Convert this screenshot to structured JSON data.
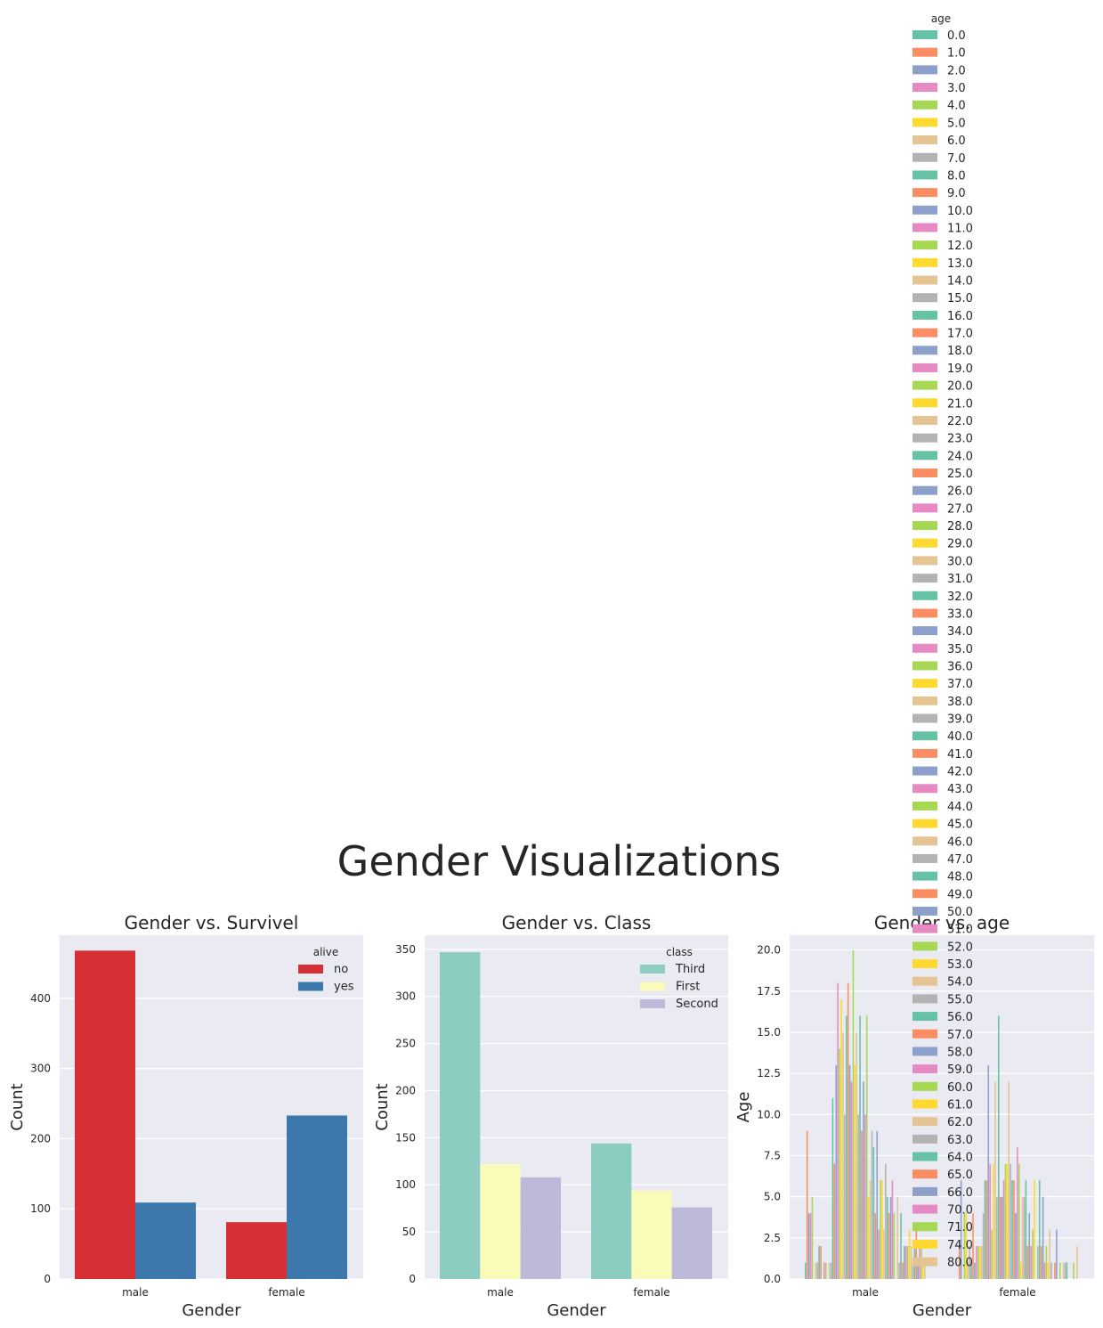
{
  "figure": {
    "suptitle": "Gender Visualizations"
  },
  "chart_data": [
    {
      "type": "bar",
      "title": "Gender vs. Survivel",
      "xlabel": "Gender",
      "ylabel": "Count",
      "categories": [
        "male",
        "female"
      ],
      "ylim": [
        0,
        490
      ],
      "yticks": [
        0,
        100,
        200,
        300,
        400
      ],
      "grid": true,
      "legend": {
        "title": "alive",
        "placement": "top-right"
      },
      "series": [
        {
          "name": "no",
          "values": [
            468,
            81
          ],
          "color": "#d62f34"
        },
        {
          "name": "yes",
          "values": [
            109,
            233
          ],
          "color": "#3d78ad"
        }
      ]
    },
    {
      "type": "bar",
      "title": "Gender vs. Class",
      "xlabel": "Gender",
      "ylabel": "Count",
      "categories": [
        "male",
        "female"
      ],
      "ylim": [
        0,
        365
      ],
      "yticks": [
        0,
        50,
        100,
        150,
        200,
        250,
        300,
        350
      ],
      "grid": true,
      "legend": {
        "title": "class",
        "placement": "top-right"
      },
      "series": [
        {
          "name": "Third",
          "values": [
            347,
            144
          ],
          "color": "#8dcdc1"
        },
        {
          "name": "First",
          "values": [
            122,
            94
          ],
          "color": "#fbfbb9"
        },
        {
          "name": "Second",
          "values": [
            108,
            76
          ],
          "color": "#bdb9d8"
        }
      ]
    },
    {
      "type": "bar",
      "title": "Gender vs. age",
      "xlabel": "Gender",
      "ylabel": "Age",
      "categories": [
        "male",
        "female"
      ],
      "ylim": [
        0,
        20.9
      ],
      "yticks": [
        "0.0",
        "2.5",
        "5.0",
        "7.5",
        "10.0",
        "12.5",
        "15.0",
        "17.5",
        "20.0"
      ],
      "grid": true,
      "legend": {
        "title": "age",
        "placement": "upper-right, above plot"
      },
      "palette": [
        "#66c2a5",
        "#fc8d62",
        "#8da0cb",
        "#e78ac3",
        "#a6d854",
        "#ffd92f",
        "#e5c494",
        "#b3b3b3"
      ],
      "series": [
        {
          "name": "0.0",
          "values": [
            1,
            0
          ]
        },
        {
          "name": "1.0",
          "values": [
            9,
            2
          ]
        },
        {
          "name": "2.0",
          "values": [
            4,
            6
          ]
        },
        {
          "name": "3.0",
          "values": [
            4,
            0
          ]
        },
        {
          "name": "4.0",
          "values": [
            5,
            4
          ]
        },
        {
          "name": "5.0",
          "values": [
            0,
            4
          ]
        },
        {
          "name": "6.0",
          "values": [
            1,
            1
          ]
        },
        {
          "name": "7.0",
          "values": [
            1,
            2
          ]
        },
        {
          "name": "8.0",
          "values": [
            2,
            1
          ]
        },
        {
          "name": "9.0",
          "values": [
            2,
            4
          ]
        },
        {
          "name": "10.0",
          "values": [
            0,
            1
          ]
        },
        {
          "name": "11.0",
          "values": [
            1,
            2
          ]
        },
        {
          "name": "12.0",
          "values": [
            1,
            2
          ]
        },
        {
          "name": "13.0",
          "values": [
            0,
            2
          ]
        },
        {
          "name": "14.0",
          "values": [
            1,
            2
          ]
        },
        {
          "name": "15.0",
          "values": [
            1,
            4
          ]
        },
        {
          "name": "16.0",
          "values": [
            11,
            6
          ]
        },
        {
          "name": "17.0",
          "values": [
            7,
            6
          ]
        },
        {
          "name": "18.0",
          "values": [
            13,
            13
          ]
        },
        {
          "name": "19.0",
          "values": [
            18,
            7
          ]
        },
        {
          "name": "20.0",
          "values": [
            14,
            3
          ]
        },
        {
          "name": "21.0",
          "values": [
            17,
            7
          ]
        },
        {
          "name": "22.0",
          "values": [
            15,
            12
          ]
        },
        {
          "name": "23.0",
          "values": [
            10,
            5
          ]
        },
        {
          "name": "24.0",
          "values": [
            16,
            16
          ]
        },
        {
          "name": "25.0",
          "values": [
            18,
            5
          ]
        },
        {
          "name": "26.0",
          "values": [
            13,
            5
          ]
        },
        {
          "name": "27.0",
          "values": [
            12,
            6
          ]
        },
        {
          "name": "28.0",
          "values": [
            20,
            7
          ]
        },
        {
          "name": "29.0",
          "values": [
            13,
            7
          ]
        },
        {
          "name": "30.0",
          "values": [
            15,
            12
          ]
        },
        {
          "name": "31.0",
          "values": [
            10,
            7
          ]
        },
        {
          "name": "32.0",
          "values": [
            16,
            6
          ]
        },
        {
          "name": "33.0",
          "values": [
            9,
            6
          ]
        },
        {
          "name": "34.0",
          "values": [
            12,
            4
          ]
        },
        {
          "name": "35.0",
          "values": [
            10,
            8
          ]
        },
        {
          "name": "36.0",
          "values": [
            16,
            7
          ]
        },
        {
          "name": "37.0",
          "values": [
            5,
            1
          ]
        },
        {
          "name": "38.0",
          "values": [
            6,
            5
          ]
        },
        {
          "name": "39.0",
          "values": [
            9,
            5
          ]
        },
        {
          "name": "40.0",
          "values": [
            8,
            6
          ]
        },
        {
          "name": "41.0",
          "values": [
            4,
            2
          ]
        },
        {
          "name": "42.0",
          "values": [
            9,
            4
          ]
        },
        {
          "name": "43.0",
          "values": [
            3,
            2
          ]
        },
        {
          "name": "44.0",
          "values": [
            6,
            3
          ]
        },
        {
          "name": "45.0",
          "values": [
            6,
            6
          ]
        },
        {
          "name": "46.0",
          "values": [
            3,
            0
          ]
        },
        {
          "name": "47.0",
          "values": [
            7,
            2
          ]
        },
        {
          "name": "48.0",
          "values": [
            5,
            6
          ]
        },
        {
          "name": "49.0",
          "values": [
            4,
            2
          ]
        },
        {
          "name": "50.0",
          "values": [
            5,
            5
          ]
        },
        {
          "name": "51.0",
          "values": [
            6,
            1
          ]
        },
        {
          "name": "52.0",
          "values": [
            4,
            2
          ]
        },
        {
          "name": "53.0",
          "values": [
            0,
            1
          ]
        },
        {
          "name": "54.0",
          "values": [
            5,
            3
          ]
        },
        {
          "name": "55.0",
          "values": [
            1,
            1
          ]
        },
        {
          "name": "56.0",
          "values": [
            4,
            0
          ]
        },
        {
          "name": "57.0",
          "values": [
            1,
            1
          ]
        },
        {
          "name": "58.0",
          "values": [
            2,
            3
          ]
        },
        {
          "name": "59.0",
          "values": [
            2,
            0
          ]
        },
        {
          "name": "60.0",
          "values": [
            2,
            1
          ]
        },
        {
          "name": "61.0",
          "values": [
            3,
            0
          ]
        },
        {
          "name": "62.0",
          "values": [
            2,
            1
          ]
        },
        {
          "name": "63.0",
          "values": [
            1,
            1
          ]
        },
        {
          "name": "64.0",
          "values": [
            2,
            1
          ]
        },
        {
          "name": "65.0",
          "values": [
            3,
            0
          ]
        },
        {
          "name": "66.0",
          "values": [
            1,
            0
          ]
        },
        {
          "name": "70.0",
          "values": [
            2,
            0
          ]
        },
        {
          "name": "71.0",
          "values": [
            2,
            1
          ]
        },
        {
          "name": "74.0",
          "values": [
            1,
            0
          ]
        },
        {
          "name": "80.0",
          "values": [
            1,
            2
          ]
        }
      ]
    }
  ]
}
